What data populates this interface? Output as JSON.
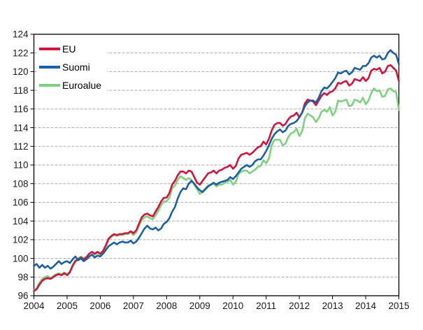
{
  "chart_data": {
    "type": "line",
    "title": "",
    "frequency": "monthly",
    "x_start": "2004-01",
    "x_end": "2015-01",
    "xlabel": "",
    "ylabel": "",
    "ylim": [
      96,
      124
    ],
    "xlim": [
      2004,
      2015
    ],
    "y_ticks": [
      96,
      98,
      100,
      102,
      104,
      106,
      108,
      110,
      112,
      114,
      116,
      118,
      120,
      122,
      124
    ],
    "x_ticks": [
      2004,
      2005,
      2006,
      2007,
      2008,
      2009,
      2010,
      2011,
      2012,
      2013,
      2014,
      2015
    ],
    "grid": "horizontal",
    "legend_position": "top-left-inside",
    "colors": {
      "axis": "#000000",
      "grid": "#a8a8a8",
      "tick_label": "#1a1a1a",
      "background": "#ffffff"
    },
    "series": [
      {
        "name": "EU",
        "color": "#d2143c",
        "values": [
          96.5,
          96.7,
          97.2,
          97.6,
          97.8,
          97.9,
          97.8,
          98.0,
          98.2,
          98.3,
          98.2,
          98.4,
          98.2,
          98.5,
          99.2,
          99.7,
          99.9,
          100.1,
          99.9,
          100.1,
          100.5,
          100.7,
          100.5,
          100.7,
          100.5,
          100.8,
          101.4,
          102.1,
          102.4,
          102.6,
          102.5,
          102.6,
          102.6,
          102.7,
          102.7,
          102.9,
          102.7,
          103.0,
          103.7,
          104.4,
          104.7,
          104.8,
          104.6,
          104.5,
          105.0,
          105.5,
          106.1,
          106.5,
          106.5,
          107.0,
          107.9,
          108.3,
          108.9,
          109.3,
          109.3,
          109.1,
          109.4,
          109.3,
          108.7,
          108.1,
          107.9,
          108.3,
          108.7,
          109.1,
          109.2,
          109.4,
          109.1,
          109.4,
          109.5,
          109.7,
          109.8,
          110.0,
          109.6,
          109.9,
          110.7,
          111.1,
          111.2,
          111.3,
          111.1,
          111.3,
          111.6,
          111.9,
          112.0,
          112.5,
          112.2,
          112.8,
          113.7,
          114.3,
          114.5,
          114.5,
          114.2,
          114.4,
          114.9,
          115.2,
          115.3,
          115.6,
          115.1,
          115.6,
          116.6,
          117.0,
          116.9,
          116.8,
          116.4,
          116.9,
          117.4,
          117.7,
          117.5,
          117.8,
          117.9,
          118.2,
          118.8,
          118.7,
          118.9,
          119.0,
          118.5,
          118.7,
          119.2,
          119.1,
          119.0,
          119.4,
          119.0,
          119.3,
          120.1,
          120.3,
          120.2,
          120.4,
          119.8,
          120.0,
          120.6,
          120.7,
          120.4,
          120.1,
          119.0
        ]
      },
      {
        "name": "Suomi",
        "color": "#1b5fa5",
        "values": [
          99.2,
          99.4,
          99.0,
          99.3,
          99.0,
          99.2,
          98.9,
          99.1,
          99.4,
          99.7,
          99.4,
          99.6,
          99.7,
          99.5,
          99.9,
          100.2,
          99.8,
          100.0,
          99.7,
          99.9,
          100.2,
          100.4,
          100.1,
          100.3,
          100.2,
          100.5,
          100.9,
          101.3,
          101.5,
          101.7,
          101.5,
          101.7,
          101.8,
          101.7,
          101.7,
          101.9,
          101.6,
          101.8,
          102.2,
          102.7,
          103.2,
          103.5,
          103.2,
          103.1,
          103.3,
          103.0,
          103.2,
          103.7,
          103.9,
          104.3,
          105.0,
          105.5,
          106.4,
          107.1,
          107.5,
          107.4,
          108.0,
          108.3,
          108.0,
          107.6,
          107.3,
          107.1,
          107.4,
          107.7,
          107.9,
          108.1,
          107.9,
          108.1,
          108.2,
          108.3,
          108.4,
          108.7,
          108.5,
          108.8,
          109.2,
          109.6,
          109.8,
          110.0,
          109.8,
          110.0,
          110.4,
          110.6,
          110.6,
          111.0,
          111.5,
          112.1,
          112.8,
          113.3,
          113.6,
          113.8,
          113.5,
          113.7,
          114.2,
          114.4,
          114.5,
          114.7,
          115.1,
          115.6,
          116.3,
          116.7,
          116.9,
          116.9,
          116.7,
          117.2,
          117.9,
          118.3,
          118.2,
          118.5,
          118.9,
          119.3,
          119.9,
          119.8,
          120.0,
          120.1,
          119.7,
          119.9,
          120.4,
          120.3,
          120.2,
          120.6,
          120.6,
          120.9,
          121.5,
          121.7,
          121.5,
          121.7,
          121.3,
          121.4,
          122.0,
          122.3,
          122.0,
          121.8,
          120.8
        ]
      },
      {
        "name": "Euroalue",
        "color": "#7ed17e",
        "values": [
          96.6,
          96.8,
          97.4,
          97.8,
          98.0,
          98.1,
          97.9,
          98.1,
          98.3,
          98.4,
          98.3,
          98.5,
          98.3,
          98.6,
          99.3,
          99.8,
          100.0,
          100.2,
          100.0,
          100.2,
          100.5,
          100.7,
          100.4,
          100.6,
          100.4,
          100.7,
          101.3,
          102.0,
          102.3,
          102.5,
          102.4,
          102.5,
          102.5,
          102.6,
          102.6,
          102.8,
          102.5,
          102.8,
          103.5,
          104.1,
          104.4,
          104.5,
          104.3,
          104.2,
          104.6,
          105.1,
          105.7,
          106.1,
          106.1,
          106.5,
          107.5,
          107.8,
          108.4,
          108.8,
          108.6,
          108.4,
          108.6,
          108.4,
          107.9,
          107.4,
          106.9,
          107.2,
          107.5,
          107.8,
          107.9,
          108.0,
          107.7,
          107.9,
          107.9,
          108.1,
          108.2,
          108.4,
          107.9,
          108.2,
          109.0,
          109.3,
          109.4,
          109.4,
          109.1,
          109.3,
          109.5,
          109.8,
          109.9,
          110.5,
          110.2,
          110.7,
          112.1,
          112.7,
          112.7,
          112.7,
          112.1,
          112.3,
          113.0,
          113.4,
          113.5,
          113.9,
          113.1,
          113.6,
          115.0,
          115.5,
          115.3,
          115.1,
          114.6,
          115.0,
          115.7,
          115.9,
          115.7,
          116.2,
          115.3,
          115.7,
          116.9,
          116.8,
          116.9,
          117.0,
          116.3,
          116.4,
          117.0,
          116.9,
          116.7,
          117.2,
          116.5,
          116.9,
          117.7,
          118.2,
          117.9,
          118.0,
          117.3,
          117.4,
          118.1,
          118.2,
          117.9,
          117.8,
          115.9
        ]
      }
    ]
  }
}
